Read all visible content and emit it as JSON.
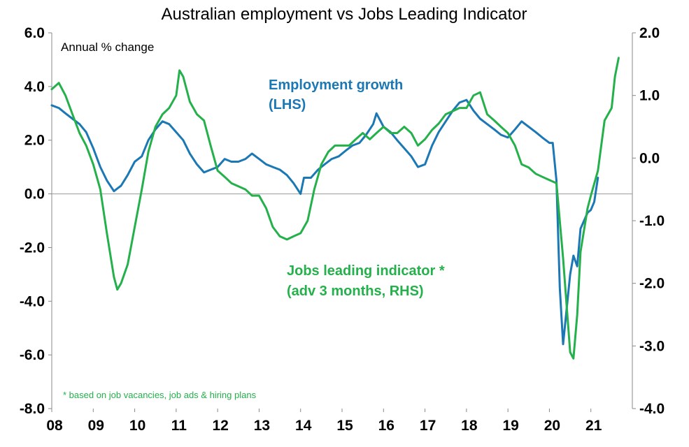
{
  "chart_data": {
    "type": "line",
    "title": "Australian employment vs Jobs Leading Indicator",
    "units_label": "Annual % change",
    "x_tick_labels": [
      "08",
      "09",
      "10",
      "11",
      "12",
      "13",
      "14",
      "15",
      "16",
      "17",
      "18",
      "19",
      "20",
      "21"
    ],
    "x_range": [
      2008.0,
      2022.0
    ],
    "y_left": {
      "range": [
        -8,
        6
      ],
      "ticks": [
        "6.0",
        "4.0",
        "2.0",
        "0.0",
        "-2.0",
        "-4.0",
        "-6.0",
        "-8.0"
      ]
    },
    "y_right": {
      "range": [
        -4,
        2
      ],
      "ticks": [
        "2.0",
        "1.0",
        "0.0",
        "-1.0",
        "-2.0",
        "-3.0",
        "-4.0"
      ]
    },
    "grid": false,
    "annotations": {
      "employment_line1": "Employment growth",
      "employment_line2": "(LHS)",
      "jobs_line1": "Jobs leading indicator *",
      "jobs_line2": "(adv 3 months, RHS)",
      "footnote": "* based on job vacancies, job ads & hiring plans"
    },
    "series": [
      {
        "name": "Employment growth",
        "axis": "left",
        "color": "#1b78b4",
        "x": [
          2008.0,
          2008.17,
          2008.33,
          2008.5,
          2008.67,
          2008.83,
          2009.0,
          2009.17,
          2009.33,
          2009.5,
          2009.58,
          2009.67,
          2009.83,
          2010.0,
          2010.17,
          2010.33,
          2010.5,
          2010.67,
          2010.83,
          2011.0,
          2011.17,
          2011.33,
          2011.5,
          2011.67,
          2011.83,
          2012.0,
          2012.17,
          2012.33,
          2012.5,
          2012.67,
          2012.83,
          2013.0,
          2013.17,
          2013.33,
          2013.5,
          2013.67,
          2013.83,
          2014.0,
          2014.08,
          2014.25,
          2014.42,
          2014.58,
          2014.75,
          2014.92,
          2015.08,
          2015.25,
          2015.42,
          2015.58,
          2015.75,
          2015.83,
          2016.0,
          2016.17,
          2016.33,
          2016.5,
          2016.67,
          2016.83,
          2017.0,
          2017.17,
          2017.33,
          2017.5,
          2017.67,
          2017.83,
          2018.0,
          2018.17,
          2018.33,
          2018.5,
          2018.67,
          2018.83,
          2019.0,
          2019.17,
          2019.33,
          2019.5,
          2019.67,
          2019.83,
          2020.0,
          2020.08,
          2020.17,
          2020.25,
          2020.33,
          2020.5,
          2020.58,
          2020.67,
          2020.75,
          2020.92,
          2021.0,
          2021.08,
          2021.17
        ],
        "values": [
          3.3,
          3.2,
          3.0,
          2.8,
          2.6,
          2.3,
          1.7,
          1.0,
          0.5,
          0.1,
          0.2,
          0.3,
          0.7,
          1.2,
          1.4,
          2.0,
          2.4,
          2.7,
          2.6,
          2.3,
          2.0,
          1.5,
          1.1,
          0.8,
          0.9,
          1.0,
          1.3,
          1.2,
          1.2,
          1.3,
          1.5,
          1.3,
          1.1,
          1.0,
          0.9,
          0.7,
          0.4,
          0.0,
          0.6,
          0.6,
          0.9,
          1.1,
          1.3,
          1.4,
          1.6,
          1.8,
          1.9,
          2.2,
          2.6,
          3.0,
          2.5,
          2.3,
          2.0,
          1.7,
          1.4,
          1.0,
          1.1,
          1.8,
          2.3,
          2.7,
          3.1,
          3.4,
          3.5,
          3.1,
          2.8,
          2.6,
          2.4,
          2.2,
          2.1,
          2.4,
          2.7,
          2.5,
          2.3,
          2.1,
          1.9,
          1.9,
          0.5,
          -3.5,
          -5.6,
          -3.0,
          -2.3,
          -2.7,
          -1.3,
          -0.7,
          -0.6,
          -0.3,
          0.6
        ]
      },
      {
        "name": "Jobs leading indicator",
        "axis": "right",
        "color": "#24b04b",
        "x": [
          2008.0,
          2008.17,
          2008.33,
          2008.5,
          2008.67,
          2008.83,
          2009.0,
          2009.17,
          2009.33,
          2009.5,
          2009.58,
          2009.67,
          2009.83,
          2010.0,
          2010.17,
          2010.33,
          2010.5,
          2010.67,
          2010.83,
          2011.0,
          2011.08,
          2011.17,
          2011.33,
          2011.5,
          2011.67,
          2011.83,
          2012.0,
          2012.17,
          2012.33,
          2012.5,
          2012.67,
          2012.83,
          2013.0,
          2013.17,
          2013.33,
          2013.5,
          2013.67,
          2013.83,
          2014.0,
          2014.17,
          2014.33,
          2014.5,
          2014.67,
          2014.83,
          2015.0,
          2015.17,
          2015.33,
          2015.5,
          2015.67,
          2015.83,
          2016.0,
          2016.17,
          2016.33,
          2016.5,
          2016.67,
          2016.83,
          2017.0,
          2017.17,
          2017.33,
          2017.5,
          2017.67,
          2017.83,
          2018.0,
          2018.17,
          2018.33,
          2018.5,
          2018.67,
          2018.83,
          2019.0,
          2019.17,
          2019.33,
          2019.5,
          2019.67,
          2019.83,
          2020.0,
          2020.17,
          2020.33,
          2020.5,
          2020.58,
          2020.67,
          2020.75,
          2020.92,
          2021.0,
          2021.17,
          2021.33,
          2021.5,
          2021.58,
          2021.67
        ],
        "values": [
          1.1,
          1.2,
          1.0,
          0.7,
          0.4,
          0.2,
          -0.1,
          -0.5,
          -1.2,
          -1.9,
          -2.1,
          -2.0,
          -1.7,
          -1.1,
          -0.5,
          0.1,
          0.5,
          0.7,
          0.8,
          1.0,
          1.4,
          1.3,
          0.9,
          0.7,
          0.6,
          0.2,
          -0.2,
          -0.3,
          -0.4,
          -0.45,
          -0.5,
          -0.6,
          -0.6,
          -0.8,
          -1.1,
          -1.25,
          -1.3,
          -1.25,
          -1.2,
          -1.0,
          -0.5,
          -0.1,
          0.1,
          0.2,
          0.2,
          0.2,
          0.3,
          0.4,
          0.3,
          0.4,
          0.5,
          0.4,
          0.4,
          0.5,
          0.4,
          0.2,
          0.3,
          0.45,
          0.55,
          0.7,
          0.75,
          0.8,
          0.8,
          1.0,
          1.05,
          0.7,
          0.6,
          0.5,
          0.4,
          0.2,
          -0.1,
          -0.15,
          -0.25,
          -0.3,
          -0.35,
          -0.4,
          -1.6,
          -3.1,
          -3.2,
          -2.5,
          -1.5,
          -0.8,
          -0.6,
          -0.2,
          0.6,
          0.8,
          1.3,
          1.6
        ]
      }
    ]
  }
}
